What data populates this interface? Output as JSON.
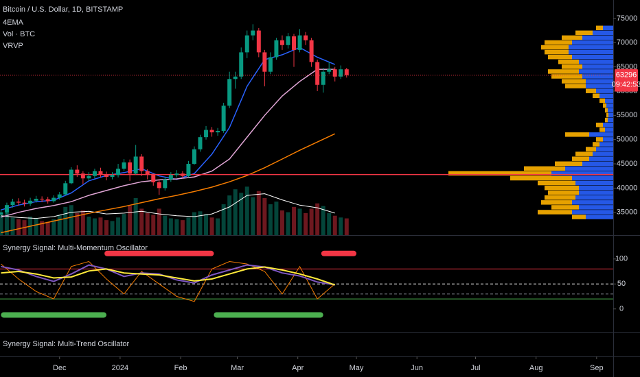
{
  "chart_data": [
    {
      "type": "candlestick",
      "title": "Bitcoin / U.S. Dollar, 1D, BITSTAMP",
      "indicators": [
        "4EMA",
        "Vol · BTC",
        "VRVP"
      ],
      "x": [
        0,
        3,
        6,
        9,
        12,
        15,
        18,
        21,
        24,
        27,
        30,
        33,
        36,
        39,
        42,
        45,
        48,
        51,
        54,
        57,
        60,
        63,
        66,
        69,
        72,
        75,
        78,
        81,
        84,
        87,
        90,
        93,
        96,
        99,
        102,
        105,
        108,
        111,
        114,
        117,
        120,
        123,
        126,
        129,
        132,
        135,
        138,
        141,
        144,
        147,
        150,
        153,
        156,
        159,
        162,
        165,
        168,
        171,
        174,
        177
      ],
      "open": [
        34500,
        35000,
        36500,
        37200,
        37000,
        36800,
        37400,
        37800,
        37700,
        37300,
        38000,
        38700,
        41000,
        43800,
        43000,
        42000,
        42500,
        43500,
        42800,
        42300,
        42700,
        44000,
        45300,
        43000,
        46500,
        43500,
        42700,
        41200,
        40000,
        41800,
        42700,
        43000,
        42500,
        45000,
        48000,
        50500,
        52000,
        51500,
        51800,
        57000,
        62500,
        63000,
        68000,
        71500,
        72500,
        68000,
        64000,
        67000,
        70500,
        69500,
        71300,
        68500,
        71500,
        70500,
        66000,
        61300,
        64000,
        64500,
        63000,
        64500
      ],
      "high": [
        35600,
        37000,
        37800,
        37900,
        37600,
        38000,
        38400,
        38300,
        38200,
        38500,
        39200,
        41500,
        44300,
        44700,
        43500,
        43300,
        44000,
        44200,
        43400,
        43300,
        45000,
        46000,
        45900,
        48900,
        47000,
        43900,
        43000,
        41700,
        42300,
        43300,
        43700,
        43500,
        45600,
        48600,
        51000,
        52800,
        52600,
        52400,
        57600,
        64000,
        64000,
        69000,
        72500,
        73800,
        73000,
        68500,
        68000,
        71000,
        71500,
        72000,
        71800,
        72800,
        72200,
        71000,
        66500,
        64800,
        66000,
        65000,
        65300,
        64800
      ],
      "low": [
        34000,
        34600,
        36000,
        36400,
        36200,
        36300,
        37000,
        37100,
        36800,
        37000,
        37600,
        38500,
        40800,
        42300,
        40800,
        41500,
        42000,
        42200,
        41600,
        41800,
        42200,
        43500,
        41500,
        42800,
        42500,
        41800,
        40500,
        38600,
        39500,
        41300,
        42200,
        42000,
        42200,
        44800,
        47500,
        50000,
        50600,
        50800,
        51400,
        56500,
        60500,
        62500,
        66800,
        70500,
        67000,
        61000,
        63500,
        66500,
        68500,
        68800,
        65000,
        68000,
        69500,
        65000,
        60000,
        59700,
        63500,
        62000,
        62500,
        62800
      ],
      "close": [
        35000,
        36500,
        37200,
        37000,
        36800,
        37400,
        37800,
        37700,
        37300,
        38000,
        38700,
        41000,
        43800,
        43000,
        42000,
        42500,
        43500,
        42800,
        42300,
        42700,
        44000,
        45300,
        43000,
        46500,
        43500,
        42700,
        41200,
        40000,
        41800,
        42700,
        43000,
        42500,
        45000,
        48000,
        50500,
        52000,
        51500,
        51800,
        57000,
        62500,
        63000,
        68000,
        71500,
        72500,
        68000,
        64000,
        67000,
        70500,
        69500,
        71300,
        68500,
        71500,
        70500,
        66000,
        61300,
        64000,
        64500,
        63000,
        64500,
        63300
      ],
      "up_color": "#089981",
      "down_color": "#f23645",
      "volume": [
        2200,
        2600,
        2000,
        1800,
        1700,
        2100,
        1900,
        1600,
        1500,
        1800,
        2300,
        3200,
        3400,
        2500,
        2800,
        2100,
        1900,
        2000,
        1700,
        1600,
        2000,
        2400,
        3300,
        4200,
        3000,
        2500,
        2300,
        3000,
        2200,
        1900,
        1800,
        1700,
        2000,
        2600,
        2700,
        2400,
        2000,
        1900,
        3500,
        4500,
        5200,
        4800,
        5500,
        4300,
        5000,
        4200,
        3500,
        3800,
        2800,
        2600,
        3200,
        3000,
        2500,
        3000,
        3600,
        3300,
        2500,
        2200,
        2000,
        1900
      ],
      "vlim": [
        0,
        7000
      ],
      "lines": [
        {
          "color": "#2962ff",
          "x": [
            0,
            9,
            18,
            27,
            36,
            45,
            54,
            63,
            72,
            81,
            90,
            99,
            108,
            117,
            126,
            135,
            144,
            153,
            162,
            171
          ],
          "values": [
            35500,
            36500,
            37200,
            37500,
            39000,
            41500,
            42600,
            43200,
            44000,
            42500,
            41800,
            43000,
            47000,
            52500,
            61000,
            66500,
            67500,
            69000,
            67000,
            65500
          ]
        },
        {
          "color": "#e1a6d6",
          "x": [
            0,
            9,
            18,
            27,
            36,
            45,
            54,
            63,
            72,
            81,
            90,
            99,
            108,
            117,
            126,
            135,
            144,
            153,
            162,
            171
          ],
          "values": [
            34000,
            35000,
            35800,
            36400,
            37200,
            38500,
            39500,
            40500,
            41300,
            41700,
            41900,
            42300,
            43500,
            46000,
            50500,
            55000,
            59000,
            62000,
            64500,
            64500
          ]
        },
        {
          "color": "#f57c00",
          "x": [
            0,
            9,
            18,
            27,
            36,
            45,
            54,
            63,
            72,
            81,
            90,
            99,
            108,
            117,
            126,
            135,
            144,
            153,
            162,
            171
          ],
          "values": [
            30800,
            31600,
            32400,
            33200,
            34000,
            34800,
            35500,
            36200,
            37000,
            37800,
            38500,
            39300,
            40200,
            41300,
            42600,
            44200,
            46000,
            47800,
            49500,
            51200
          ]
        }
      ],
      "volume_ma": {
        "color": "#ffffff",
        "x": [
          0,
          9,
          18,
          27,
          36,
          45,
          54,
          63,
          72,
          81,
          90,
          99,
          108,
          117,
          126,
          135,
          144,
          153,
          162,
          171
        ],
        "values": [
          2200,
          2000,
          1900,
          2100,
          2600,
          2700,
          2400,
          2500,
          2700,
          2400,
          2200,
          2100,
          2400,
          3200,
          4500,
          4700,
          4000,
          3400,
          3100,
          2500
        ]
      },
      "hlines": [
        {
          "value": 42800,
          "color": "#f23645"
        }
      ],
      "last_price": 63296,
      "countdown": "09:42:53",
      "ylim": [
        30300,
        78800
      ],
      "yticks": [
        35000,
        40000,
        45000,
        50000,
        55000,
        60000,
        65000,
        70000,
        75000
      ],
      "xlim": [
        -0.5,
        313.5
      ],
      "xticks": [
        {
          "value": 30,
          "label": "Dec"
        },
        {
          "value": 61,
          "label": "2024"
        },
        {
          "value": 92,
          "label": "Feb"
        },
        {
          "value": 121,
          "label": "Mar"
        },
        {
          "value": 152,
          "label": "Apr"
        },
        {
          "value": 182,
          "label": "May"
        },
        {
          "value": 213,
          "label": "Jun"
        },
        {
          "value": 243,
          "label": "Jul"
        },
        {
          "value": 274,
          "label": "Aug"
        },
        {
          "value": 305,
          "label": "Sep"
        }
      ],
      "volume_profile": {
        "prices": [
          34000,
          35000,
          36000,
          37000,
          38000,
          39000,
          40000,
          41000,
          42000,
          43000,
          44000,
          45000,
          46000,
          47000,
          48000,
          49000,
          50000,
          51000,
          52000,
          53000,
          54000,
          55000,
          56000,
          57000,
          58000,
          59000,
          60000,
          61000,
          62000,
          63000,
          64000,
          65000,
          66000,
          67000,
          68000,
          69000,
          70000,
          71000,
          72000,
          73000
        ],
        "buy": [
          40,
          60,
          50,
          60,
          55,
          50,
          50,
          55,
          60,
          90,
          70,
          45,
          35,
          30,
          25,
          20,
          15,
          35,
          12,
          15,
          8,
          7,
          8,
          10,
          12,
          20,
          25,
          40,
          40,
          45,
          50,
          45,
          50,
          60,
          65,
          65,
          60,
          45,
          30,
          15
        ],
        "sell": [
          20,
          50,
          40,
          45,
          45,
          45,
          50,
          55,
          90,
          150,
          60,
          40,
          25,
          25,
          15,
          10,
          10,
          35,
          8,
          10,
          4,
          3,
          4,
          5,
          8,
          10,
          15,
          30,
          35,
          45,
          45,
          30,
          30,
          35,
          35,
          40,
          40,
          30,
          25,
          10
        ],
        "buy_color": "#2962ff",
        "sell_color": "#ffb300",
        "xlim": [
          0,
          300
        ]
      }
    },
    {
      "type": "line",
      "title": "Synergy Signal: Multi-Momentum Oscillator",
      "x": [
        0,
        9,
        18,
        27,
        36,
        45,
        54,
        63,
        72,
        81,
        90,
        99,
        108,
        117,
        126,
        135,
        144,
        153,
        162,
        171
      ],
      "series": [
        {
          "color": "#f57c00",
          "values": [
            90,
            60,
            35,
            20,
            85,
            95,
            60,
            30,
            75,
            50,
            25,
            15,
            80,
            95,
            90,
            75,
            30,
            85,
            20,
            50
          ]
        },
        {
          "color": "#7e57c2",
          "values": [
            85,
            78,
            65,
            55,
            70,
            88,
            80,
            65,
            72,
            70,
            58,
            52,
            68,
            78,
            88,
            84,
            72,
            66,
            54,
            48
          ]
        },
        {
          "color": "#ffeb3b",
          "values": [
            72,
            75,
            70,
            62,
            64,
            76,
            80,
            72,
            70,
            68,
            62,
            56,
            60,
            70,
            80,
            84,
            78,
            70,
            60,
            48
          ]
        }
      ],
      "levels": [
        {
          "value": 80,
          "color": "#f23645"
        },
        {
          "value": 50,
          "color": "#ffffff",
          "dash": true
        },
        {
          "value": 30,
          "color": "#787b86",
          "dash": true
        },
        {
          "value": 20,
          "color": "#4caf50"
        }
      ],
      "signals": [
        {
          "color": "#f23645",
          "value": 111,
          "x": [
            [
              53,
              109
            ],
            [
              164,
              182
            ]
          ]
        },
        {
          "color": "#4caf50",
          "value": -12,
          "x": [
            [
              0,
              54
            ],
            [
              109,
              165
            ]
          ]
        }
      ],
      "ylim": [
        -47,
        145
      ],
      "yticks": [
        0,
        50,
        100
      ]
    },
    {
      "type": "line",
      "title": "Synergy Signal: Multi-Trend Oscillator"
    }
  ]
}
